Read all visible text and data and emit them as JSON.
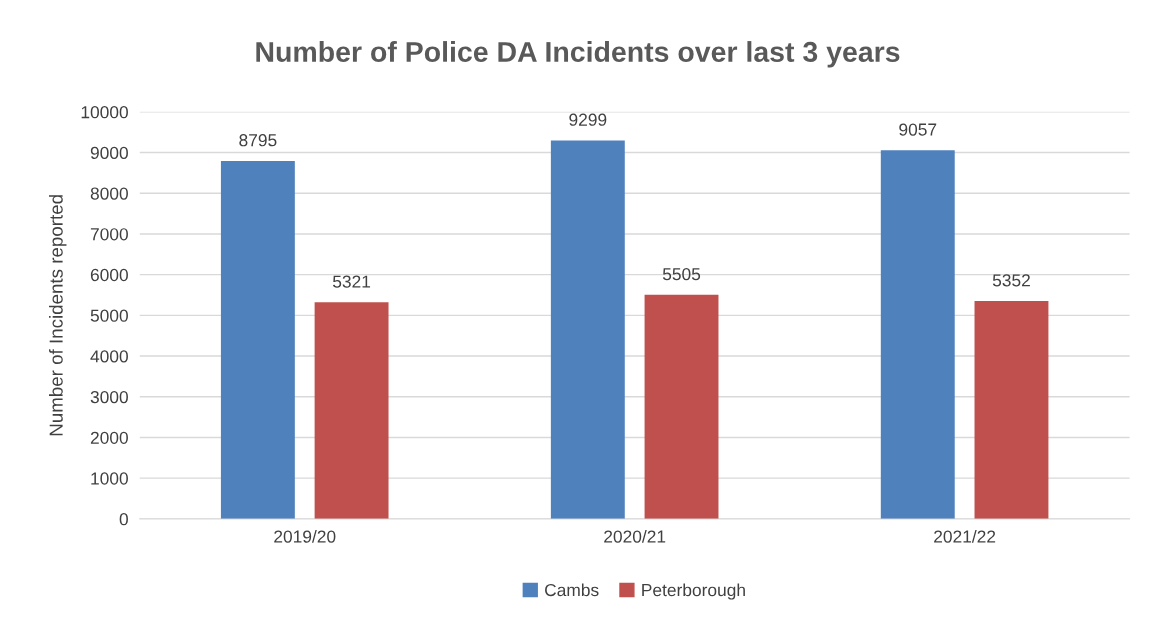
{
  "chart_data": {
    "type": "bar",
    "title": "Number of Police DA Incidents over last 3 years",
    "ylabel": "Number of Incidents reported",
    "categories": [
      "2019/20",
      "2020/21",
      "2021/22"
    ],
    "series": [
      {
        "name": "Cambs",
        "color": "#4f81bd",
        "values": [
          8795,
          9299,
          9057
        ]
      },
      {
        "name": "Peterborough",
        "color": "#c0504d",
        "values": [
          5321,
          5505,
          5352
        ]
      }
    ],
    "ylim": [
      0,
      10000
    ],
    "yticks": [
      0,
      1000,
      2000,
      3000,
      4000,
      5000,
      6000,
      7000,
      8000,
      9000,
      10000
    ],
    "grid": "y",
    "legend": "bottom",
    "data_labels": true
  }
}
